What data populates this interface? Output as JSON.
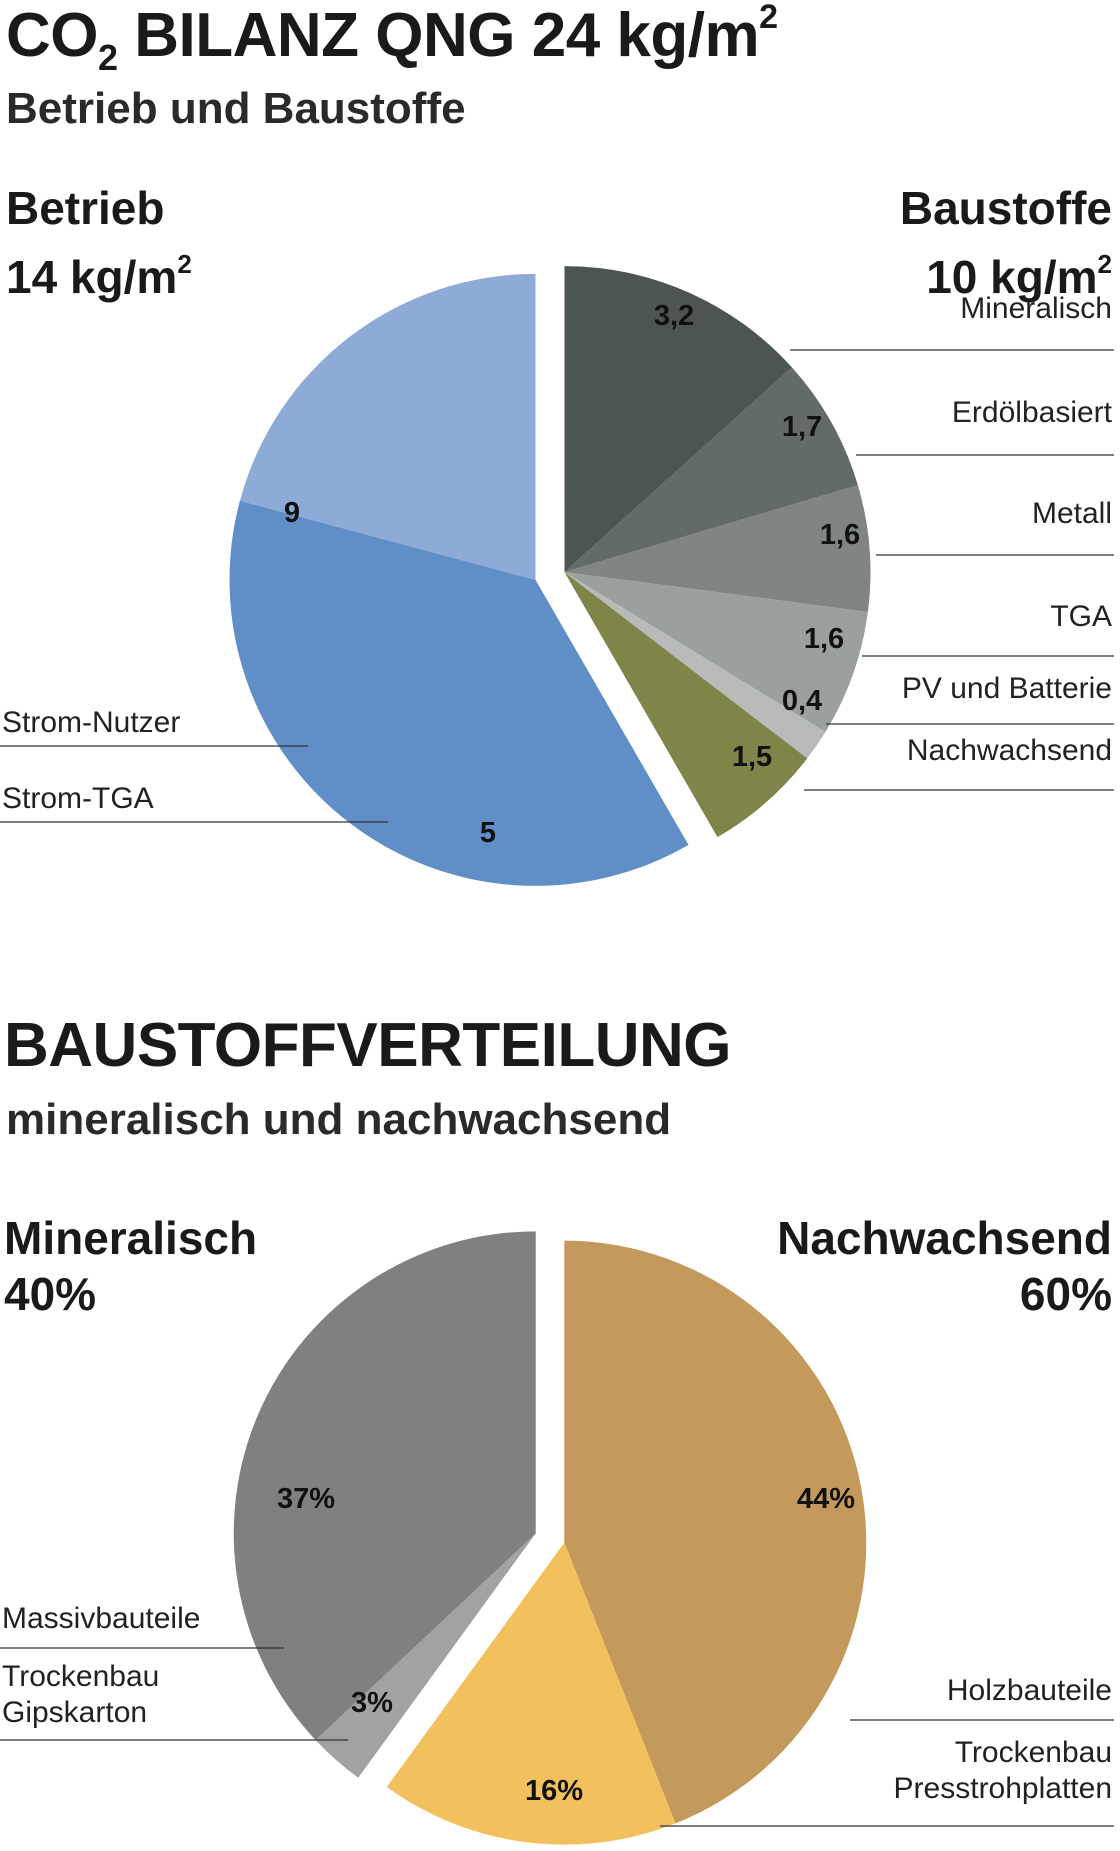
{
  "header1": {
    "title_a": "CO",
    "title_sub": "2",
    "title_b": " BILANZ  QNG 24 kg/m",
    "title_sup": "2",
    "subtitle": "Betrieb und Baustoffe"
  },
  "group_betrieb": {
    "name": "Betrieb",
    "value": "14 kg/m",
    "sup": "2"
  },
  "group_baustoffe": {
    "name": "Baustoffe",
    "value": "10 kg/m",
    "sup": "2"
  },
  "header2": {
    "title": "BAUSTOFFVERTEILUNG",
    "subtitle": "mineralisch und nachwachsend"
  },
  "group_mineralisch": {
    "name": "Mineralisch",
    "value": "40%"
  },
  "group_nachwachsend": {
    "name": "Nachwachsend",
    "value": "60%"
  },
  "chart_data": [
    {
      "type": "pie",
      "groups": [
        {
          "name": "Betrieb",
          "side": "left",
          "slices": [
            {
              "label": "Strom-Nutzer",
              "value": 9,
              "value_label": "9",
              "color": "#5f8fc6"
            },
            {
              "label": "Strom-TGA",
              "value": 5,
              "value_label": "5",
              "color": "#8eabd7"
            }
          ]
        },
        {
          "name": "Baustoffe",
          "side": "right",
          "slices": [
            {
              "label": "Mineralisch",
              "value": 3.2,
              "value_label": "3,2",
              "color": "#4c5552"
            },
            {
              "label": "Erdölbasiert",
              "value": 1.7,
              "value_label": "1,7",
              "color": "#636b68"
            },
            {
              "label": "Metall",
              "value": 1.6,
              "value_label": "1,6",
              "color": "#808583"
            },
            {
              "label": "TGA",
              "value": 1.6,
              "value_label": "1,6",
              "color": "#9b9f9d"
            },
            {
              "label": "PV und Batterie",
              "value": 0.4,
              "value_label": "0,4",
              "color": "#b8bbb9"
            },
            {
              "label": "Nachwachsend",
              "value": 1.5,
              "value_label": "1,5",
              "color": "#7f8548"
            }
          ]
        }
      ]
    },
    {
      "type": "pie",
      "groups": [
        {
          "name": "Nachwachsend",
          "side": "right",
          "slices": [
            {
              "label": "Holzbauteile",
              "value": 44,
              "value_label": "44%",
              "color": "#c49a5c"
            },
            {
              "label": "Trockenbau Presstrohplatten",
              "value": 16,
              "value_label": "16%",
              "color": "#f2c15d"
            }
          ]
        },
        {
          "name": "Mineralisch",
          "side": "left",
          "slices": [
            {
              "label": "Trockenbau Gipskarton",
              "value": 3,
              "value_label": "3%",
              "color": "#a2a2a2"
            },
            {
              "label": "Massivbauteile",
              "value": 37,
              "value_label": "37%",
              "color": "#7f8080"
            }
          ]
        }
      ]
    }
  ]
}
